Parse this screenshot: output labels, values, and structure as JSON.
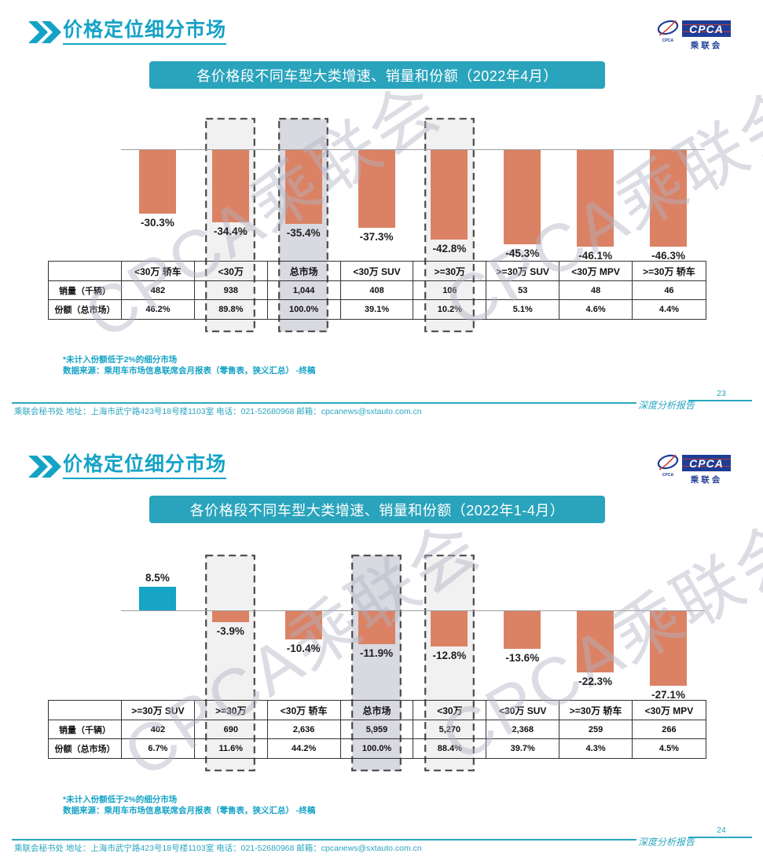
{
  "colors": {
    "accent": "#14A3C4",
    "title_text": "#16A3C6",
    "banner_bg": "#2AA4BC",
    "bar_negative": "#DB8265",
    "bar_positive": "#16A5C6",
    "highlight_light": "#F1F1F1",
    "highlight_gray": "#D9D9E2",
    "dash_border": "#4a4a4a",
    "footer_teal": "#2AA6C0",
    "watermark": "rgba(178,180,195,0.45)",
    "logo_blue": "#1E3D96",
    "logo_red": "#D03A2B"
  },
  "slides": [
    {
      "title": "价格定位细分市场",
      "banner": "各价格段不同车型大类增速、销量和份额（2022年4月）",
      "logo": {
        "abbr": "CPCA",
        "name": "乘联会",
        "caption": "CPCA"
      },
      "watermark": "CPCA乘联会",
      "chart_data": {
        "type": "bar",
        "categories": [
          "<30万 轿车",
          "<30万",
          "总市场",
          "<30万 SUV",
          ">=30万",
          ">=30万 SUV",
          "<30万 MPV",
          ">=30万 轿车"
        ],
        "series": [
          {
            "name": "增速",
            "unit": "%",
            "values": [
              -30.3,
              -34.4,
              -35.4,
              -37.3,
              -42.8,
              -45.3,
              -46.1,
              -46.3
            ],
            "labels": [
              "-30.3%",
              "-34.4%",
              "-35.4%",
              "-37.3%",
              "-42.8%",
              "-45.3%",
              "-46.1%",
              "-46.3%"
            ]
          },
          {
            "name": "销量（千辆）",
            "values": [
              "482",
              "938",
              "1,044",
              "408",
              "106",
              "53",
              "48",
              "46"
            ]
          },
          {
            "name": "份额（总市场）",
            "values": [
              "46.2%",
              "89.8%",
              "100.0%",
              "39.1%",
              "10.2%",
              "5.1%",
              "4.6%",
              "4.4%"
            ]
          }
        ],
        "highlight_boxes": [
          {
            "category": "<30万",
            "style": "light"
          },
          {
            "category": "总市场",
            "style": "gray"
          },
          {
            "category": ">=30万",
            "style": "light"
          }
        ],
        "baseline_value": 0
      },
      "table": {
        "row_labels": [
          "销量（千辆）",
          "份额（总市场）"
        ]
      },
      "footnotes": [
        "*未计入份额低于2%的细分市场",
        "数据来源：乘用车市场信息联席会月报表（零售表，狭义汇总） -终稿"
      ],
      "footer": {
        "left": "乘联会秘书处  地址：上海市武宁路423号18号楼1103室 电话：021-52680968  邮箱：cpcanews@sxtauto.com.cn",
        "report": "深度分析报告",
        "page": "23"
      }
    },
    {
      "title": "价格定位细分市场",
      "banner": "各价格段不同车型大类增速、销量和份额（2022年1-4月）",
      "logo": {
        "abbr": "CPCA",
        "name": "乘联会",
        "caption": "CPCA"
      },
      "watermark": "CPCA乘联会",
      "chart_data": {
        "type": "bar",
        "categories": [
          ">=30万 SUV",
          ">=30万",
          "<30万 轿车",
          "总市场",
          "<30万",
          "<30万 SUV",
          ">=30万 轿车",
          "<30万 MPV"
        ],
        "series": [
          {
            "name": "增速",
            "unit": "%",
            "values": [
              8.5,
              -3.9,
              -10.4,
              -11.9,
              -12.8,
              -13.6,
              -22.3,
              -27.1
            ],
            "labels": [
              "8.5%",
              "-3.9%",
              "-10.4%",
              "-11.9%",
              "-12.8%",
              "-13.6%",
              "-22.3%",
              "-27.1%"
            ]
          },
          {
            "name": "销量（千辆）",
            "values": [
              "402",
              "690",
              "2,636",
              "5,959",
              "5,270",
              "2,368",
              "259",
              "266"
            ]
          },
          {
            "name": "份额（总市场）",
            "values": [
              "6.7%",
              "11.6%",
              "44.2%",
              "100.0%",
              "88.4%",
              "39.7%",
              "4.3%",
              "4.5%"
            ]
          }
        ],
        "highlight_boxes": [
          {
            "category": ">=30万",
            "style": "light"
          },
          {
            "category": "总市场",
            "style": "gray"
          },
          {
            "category": "<30万",
            "style": "light"
          }
        ],
        "baseline_value": 0
      },
      "table": {
        "row_labels": [
          "销量（千辆）",
          "份额（总市场）"
        ]
      },
      "footnotes": [
        "*未计入份额低于2%的细分市场",
        "数据来源：乘用车市场信息联席会月报表（零售表，狭义汇总） -终稿"
      ],
      "footer": {
        "left": "乘联会秘书处  地址：上海市武宁路423号18号楼1103室 电话：021-52680968  邮箱：cpcanews@sxtauto.com.cn",
        "report": "深度分析报告",
        "page": "24"
      }
    }
  ]
}
